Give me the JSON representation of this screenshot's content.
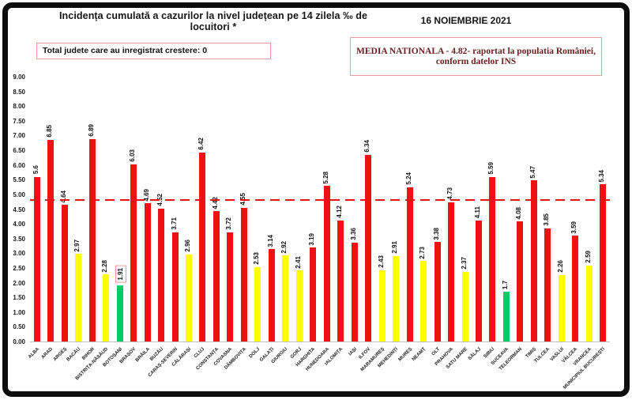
{
  "header": {
    "title": "Incidența cumulată a cazurilor la nivel județean pe 14 zilela ‰ de locuitori *",
    "date": "16 NOIEMBRIE 2021",
    "total_box_text": "Total judete care au inregistrat crestere: 0",
    "media_box_line1": "MEDIA NATIONALA  - 4.82-  raportat la populatia României,",
    "media_box_line2": "conform datelor INS"
  },
  "chart_data": {
    "type": "bar",
    "title": "Incidența cumulată a cazurilor la nivel județean pe 14 zilela ‰ de locuitori *",
    "xlabel": "",
    "ylabel": "",
    "ylim": [
      0,
      9
    ],
    "ytick_step": 0.5,
    "ytick_labels": [
      "9.00",
      "8.50",
      "8.00",
      "7.50",
      "7.00",
      "6.50",
      "6.00",
      "5.50",
      "5.00",
      "4.50",
      "4.00",
      "3.50",
      "3.00",
      "2.50",
      "2.00",
      "1.50",
      "1.00",
      "0.50",
      "0.00"
    ],
    "grid": false,
    "legend": false,
    "national_average": 4.82,
    "national_average_line_style": "red-dashed",
    "categories": [
      "ALBA",
      "ARAD",
      "ARGEȘ",
      "BACĂU",
      "BIHOR",
      "BISTRIȚA-NĂSĂUD",
      "BOTOȘANI",
      "BRAȘOV",
      "BRĂILA",
      "BUZĂU",
      "CARAȘ-SEVERIN",
      "CĂLĂRAȘI",
      "CLUJ",
      "CONSTANȚA",
      "COVASNA",
      "DÂMBOVIȚA",
      "DOLJ",
      "GALAȚI",
      "GIURGIU",
      "GORJ",
      "HARGHITA",
      "HUNEDOARA",
      "IALOMIȚA",
      "IAȘI",
      "ILFOV",
      "MARAMUREȘ",
      "MEHEDINȚI",
      "MUREȘ",
      "NEAMȚ",
      "OLT",
      "PRAHOVA",
      "SATU MARE",
      "SĂLAJ",
      "SIBIU",
      "SUCEAVA",
      "TELEORMAN",
      "TIMIȘ",
      "TULCEA",
      "VASLUI",
      "VÂLCEA",
      "VRANCEA",
      "MUNICIPIUL BUCUREȘTI"
    ],
    "values": [
      5.6,
      6.85,
      4.64,
      2.97,
      6.89,
      2.28,
      1.91,
      6.03,
      4.69,
      4.52,
      3.71,
      2.96,
      6.42,
      4.42,
      3.72,
      4.55,
      2.53,
      3.14,
      2.92,
      2.41,
      3.19,
      5.28,
      4.12,
      3.36,
      6.34,
      2.43,
      2.91,
      5.24,
      2.73,
      3.38,
      4.73,
      2.37,
      4.11,
      5.59,
      1.7,
      4.08,
      5.47,
      3.85,
      2.26,
      3.59,
      2.59,
      5.34
    ],
    "display_values": [
      "5.6",
      "6.85",
      "4.64",
      "2.97",
      "6.89",
      "2.28",
      "1.91",
      "6.03",
      "4.69",
      "4.52",
      "3.71",
      "2.96",
      "6.42",
      "4.42",
      "3.72",
      "4.55",
      "2.53",
      "3.14",
      "2.92",
      "2.41",
      "3.19",
      "5.28",
      "4.12",
      "3.36",
      "6.34",
      "2.43",
      "2.91",
      "5.24",
      "2.73",
      "3.38",
      "4.73",
      "2.37",
      "4.11",
      "5.59",
      "1.7",
      "4.08",
      "5.47",
      "3.85",
      "2.26",
      "3.59",
      "2.59",
      "5.34"
    ],
    "bar_colors": [
      "red",
      "red",
      "red",
      "yellow",
      "red",
      "yellow",
      "green",
      "red",
      "red",
      "red",
      "red",
      "yellow",
      "red",
      "red",
      "red",
      "red",
      "yellow",
      "red",
      "yellow",
      "yellow",
      "red",
      "red",
      "red",
      "red",
      "red",
      "yellow",
      "yellow",
      "red",
      "yellow",
      "red",
      "red",
      "yellow",
      "red",
      "red",
      "green",
      "red",
      "red",
      "red",
      "yellow",
      "red",
      "yellow",
      "red"
    ],
    "boxed_value_categories": [
      "BOTOȘANI"
    ],
    "palette": {
      "red": "#ee1111",
      "yellow": "#ffff00",
      "green": "#00cc66"
    }
  }
}
